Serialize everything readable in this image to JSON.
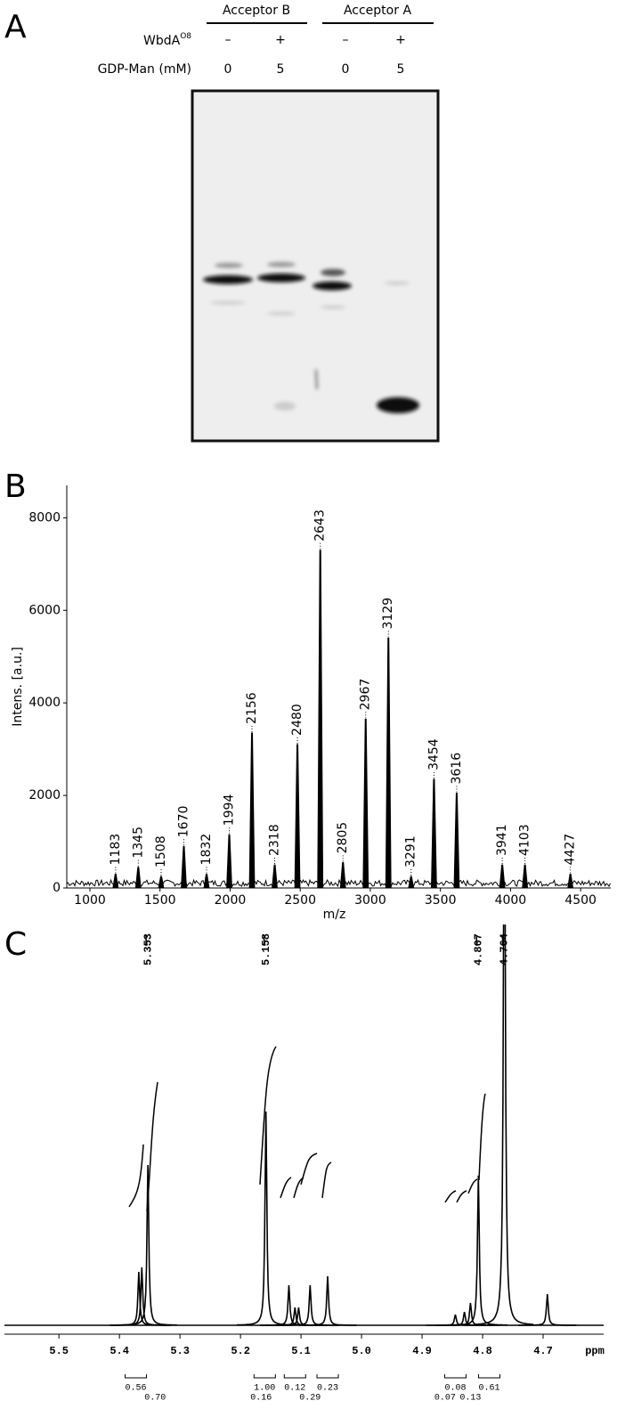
{
  "panel_labels": [
    "A",
    "B",
    "C"
  ],
  "gel": {
    "groups": [
      "Acceptor B",
      "Acceptor A"
    ],
    "enzyme_label": "WbdA",
    "enzyme_superscript": "O8",
    "substrate_label": "GDP-Man (mM)",
    "enzyme": [
      "–",
      "+",
      "–",
      "+"
    ],
    "substrate": [
      0,
      5,
      0,
      5
    ]
  },
  "chart_data": [
    {
      "type": "spectrum",
      "xlabel": "m/z",
      "ylabel": "Intens. [a.u.]",
      "color": "#000000",
      "x": [
        1183,
        1345,
        1508,
        1670,
        1832,
        1994,
        2156,
        2318,
        2480,
        2643,
        2805,
        2967,
        3129,
        3291,
        3454,
        3616,
        3941,
        4103,
        4427
      ],
      "values": [
        300,
        450,
        250,
        900,
        300,
        1150,
        3350,
        500,
        3100,
        7300,
        550,
        3650,
        5400,
        250,
        2350,
        2050,
        500,
        500,
        300
      ],
      "xlim": [
        835,
        4715
      ],
      "ylim": [
        0,
        8700
      ],
      "xticks": [
        1000,
        1500,
        2000,
        2500,
        3000,
        3500,
        4000,
        4500
      ],
      "yticks": [
        0,
        2000,
        4000,
        6000,
        8000
      ]
    },
    {
      "type": "nmr",
      "xlabel": "ppm",
      "color": "#000000",
      "x": [
        5.368,
        5.363,
        5.353,
        5.158,
        5.12,
        5.11,
        5.104,
        5.085,
        5.056,
        4.845,
        4.83,
        4.82,
        4.807,
        4.764,
        4.693
      ],
      "values": [
        60,
        65,
        180,
        240,
        45,
        20,
        20,
        45,
        55,
        12,
        15,
        25,
        168,
        700,
        35
      ],
      "ylim": [
        0,
        450
      ],
      "xlim": [
        5.59,
        4.6
      ],
      "xticks": [
        {
          "value": 5.5,
          "label": "5.5"
        },
        5.4,
        5.3,
        5.2,
        5.1,
        {
          "value": 5,
          "label": "5.0"
        },
        4.9,
        4.8,
        4.7
      ],
      "peak_labels": [
        5.353,
        5.158,
        4.807,
        4.764
      ],
      "integrals_upper": [
        {
          "x": 5.373,
          "value": 0.56
        },
        {
          "x": 5.16,
          "value": 1,
          "label": "1.00"
        },
        {
          "x": 5.11,
          "value": 0.12
        },
        {
          "x": 5.056,
          "value": 0.23
        },
        {
          "x": 4.845,
          "value": 0.08
        },
        {
          "x": 4.789,
          "value": 0.61
        }
      ],
      "integrals_lower": [
        {
          "x": 5.341,
          "value": 0.7,
          "label": "0.70"
        },
        {
          "x": 5.166,
          "value": 0.16
        },
        {
          "x": 5.085,
          "value": 0.29
        },
        {
          "x": 4.862,
          "value": 0.07
        },
        {
          "x": 4.82,
          "value": 0.13
        }
      ]
    }
  ]
}
